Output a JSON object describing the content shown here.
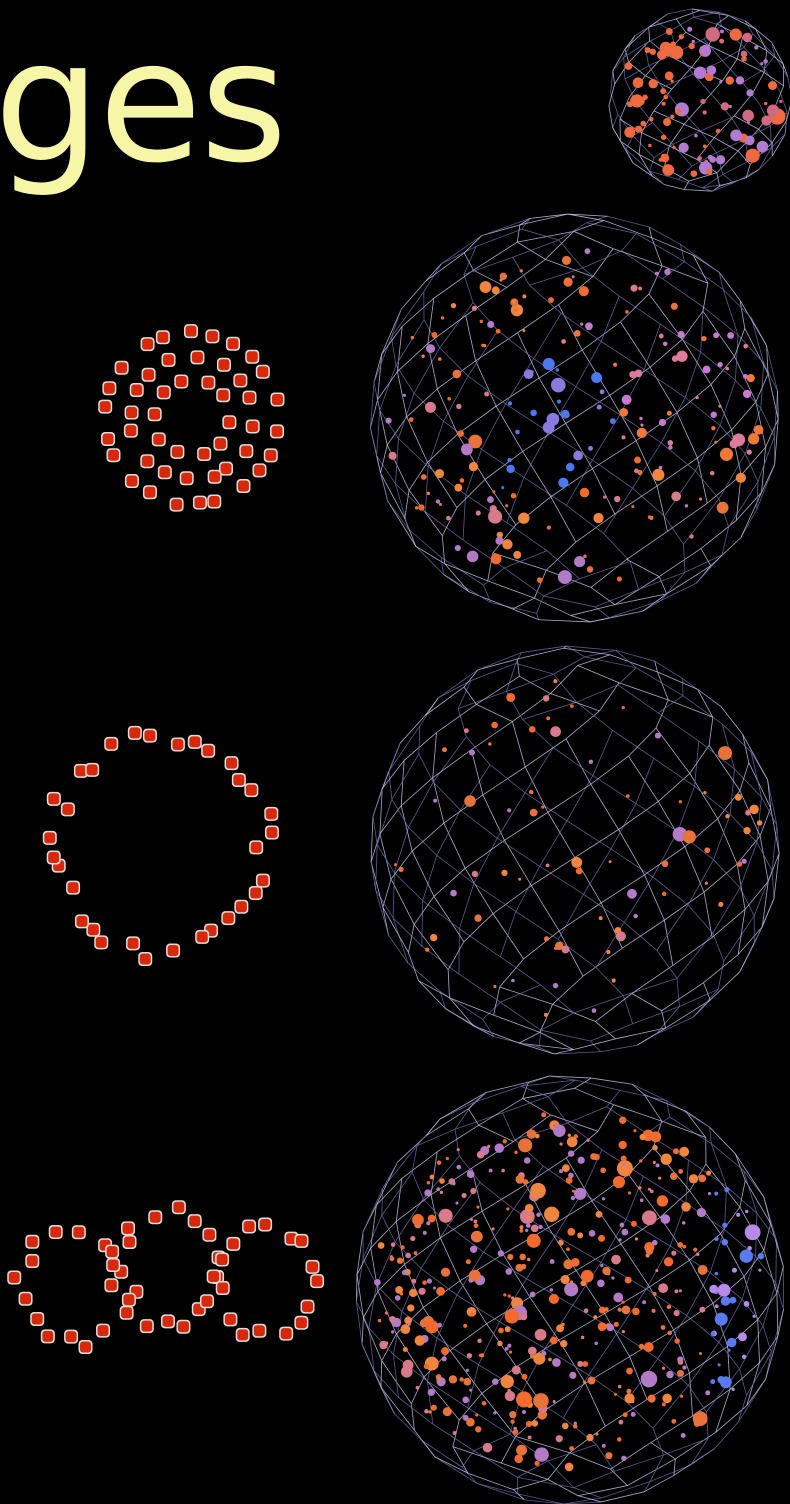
{
  "title": "ges"
}
